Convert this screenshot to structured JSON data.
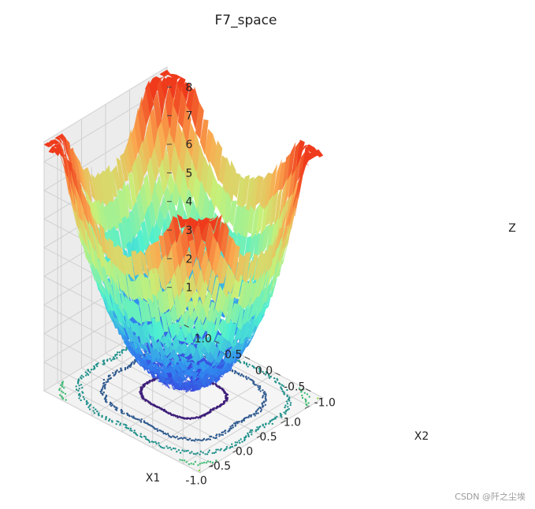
{
  "chart_data": {
    "type": "surface3d",
    "title": "F7_space",
    "xlabel": "X1",
    "ylabel": "X2",
    "zlabel": "Z",
    "x_ticks": [
      "-1.0",
      "-0.5",
      "0.0",
      "0.5",
      "1.0"
    ],
    "y_ticks": [
      "-1.0",
      "-0.5",
      "0.0",
      "0.5",
      "1.0"
    ],
    "z_ticks": [
      "1",
      "2",
      "3",
      "4",
      "5",
      "6",
      "7",
      "8"
    ],
    "xlim": [
      -1.28,
      1.28
    ],
    "ylim": [
      -1.28,
      1.28
    ],
    "zlim": [
      0,
      8.7
    ],
    "colormap": "rainbow",
    "contour_colormap": "viridis",
    "grid": true,
    "surface_samples": {
      "x": [
        -1.28,
        -1.0,
        -0.5,
        0.0,
        0.5,
        1.0,
        1.28
      ],
      "y": [
        -1.28,
        -1.0,
        -0.5,
        0.0,
        0.5,
        1.0,
        1.28
      ],
      "z_at_corners": {
        "(-1.28,-1.28)": 8.0,
        "(1.28,-1.28)": 8.3,
        "(-1.28,1.28)": 8.5,
        "(1.28,1.28)": 8.3,
        "(0,0)": 0.3
      }
    },
    "contour_levels": [
      1.0,
      2.5,
      4.0,
      5.5,
      7.0
    ]
  },
  "colors": {
    "pane_fill": "#f2f2f2",
    "grid": "#d0d0d0",
    "low": "#3b2fd6",
    "mid": "#4ef0d0",
    "high": "#ef3b1c"
  },
  "watermark": "CSDN @阡之尘埃"
}
